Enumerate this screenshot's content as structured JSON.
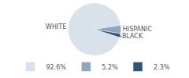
{
  "chart_data": {
    "type": "pie",
    "categories": [
      "WHITE",
      "HISPANIC",
      "BLACK"
    ],
    "values": [
      92.6,
      5.2,
      2.3
    ],
    "value_labels": [
      "92.6%",
      "5.2%",
      "2.3%"
    ],
    "colors": [
      "#d9e1ea",
      "#8ea6be",
      "#2f5673"
    ],
    "legend": "bottom"
  }
}
